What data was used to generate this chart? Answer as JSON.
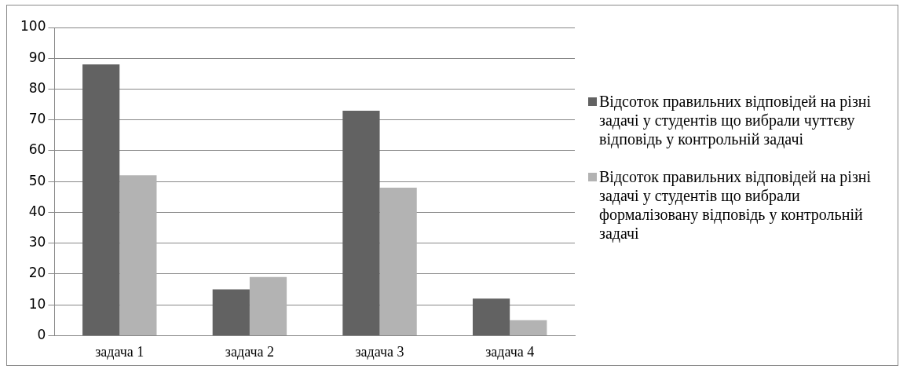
{
  "chart_data": {
    "type": "bar",
    "categories": [
      "задача 1",
      "задача 2",
      "задача 3",
      "задача 4"
    ],
    "series": [
      {
        "name": "Відсоток правильних відповідей на різні задачі у студентів що вибрали чуттєву відповідь у контрольній задачі",
        "color": "#626262",
        "values": [
          88,
          15,
          73,
          12
        ]
      },
      {
        "name": "Відсоток правильних відповідей на різні задачі у студентів що вибрали формалізовану відповідь у контрольній задачі",
        "color": "#b3b3b3",
        "values": [
          52,
          19,
          48,
          5
        ]
      }
    ],
    "ylim": [
      0,
      100
    ],
    "yticks": [
      0,
      10,
      20,
      30,
      40,
      50,
      60,
      70,
      80,
      90,
      100
    ],
    "grid": "y",
    "legend": "right"
  }
}
